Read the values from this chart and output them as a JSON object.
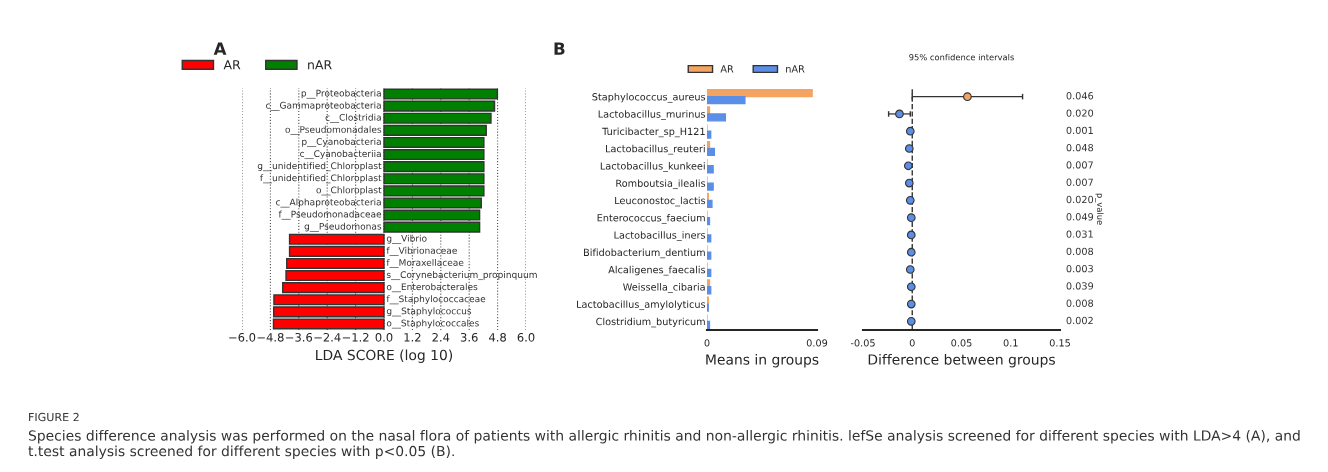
{
  "chart_data": [
    {
      "type": "bar",
      "orientation": "horizontal",
      "title": "A",
      "xlabel": "LDA SCORE (log 10)",
      "categories": [
        "p__Proteobacteria",
        "c__Gammaproteobacteria",
        "c__Clostridia",
        "o__Pseudomonadales",
        "p__Cyanobacteria",
        "c__Cyanobacteriia",
        "g__unidentified_Chloroplast",
        "f__unidentified_Chloroplast",
        "o__Chloroplast",
        "c__Alphaproteobacteria",
        "f__Pseudomonadaceae",
        "g__Pseudomonas",
        "g__Vibrio",
        "f__Vibrionaceae",
        "f__Moraxellaceae",
        "s__Corynebacterium_propinquum",
        "o__Enterobacterales",
        "f__Staphylococcaceae",
        "g__Staphylococcus",
        "o__Staphylococcales"
      ],
      "series": [
        {
          "name": "AR",
          "color": "#ff0000",
          "values": [
            null,
            null,
            null,
            null,
            null,
            null,
            null,
            null,
            null,
            null,
            null,
            null,
            -3.99,
            -3.99,
            -4.11,
            -4.14,
            -4.28,
            -4.65,
            -4.66,
            -4.67
          ]
        },
        {
          "name": "nAR",
          "color": "#008000",
          "values": [
            4.79,
            4.67,
            4.52,
            4.32,
            4.22,
            4.22,
            4.22,
            4.22,
            4.22,
            4.11,
            4.04,
            4.04,
            null,
            null,
            null,
            null,
            null,
            null,
            null,
            null
          ]
        }
      ],
      "xlim": [
        -6.0,
        6.0
      ],
      "xticks": [
        {
          "value": -6.0,
          "label": "−6.0"
        },
        {
          "value": -4.8,
          "label": "−4.8"
        },
        {
          "value": -3.6,
          "label": "−3.6"
        },
        {
          "value": -2.4,
          "label": "−2.4"
        },
        {
          "value": -1.2,
          "label": "−1.2"
        },
        {
          "value": 0.0,
          "label": "0.0"
        },
        {
          "value": 1.2,
          "label": "1.2"
        },
        {
          "value": 2.4,
          "label": "2.4"
        },
        {
          "value": 3.6,
          "label": "3.6"
        },
        {
          "value": 4.8,
          "label": "4.8"
        },
        {
          "value": 6.0,
          "label": "6.0"
        }
      ],
      "grid": "x",
      "legend": "top left",
      "stacked": true,
      "annotations": [
        "FIGURE 2",
        "Species difference analysis was performed on the nasal flora of patients with allergic rhinitis and non-allergic rhinitis. lefSe analysis screened for different species with LDA>4 (A), and t.test analysis screened for different species with p<0.05 (B)."
      ]
    },
    {
      "type": "bar",
      "orientation": "horizontal",
      "title": "B",
      "xlabel": "Means in groups",
      "categories": [
        "Staphylococcus_aureus",
        "Lactobacillus_murinus",
        "Turicibacter_sp_H121",
        "Lactobacillus_reuteri",
        "Lactobacillus_kunkeei",
        "Romboutsia_ilealis",
        "Leuconostoc_lactis",
        "Enterococcus_faecium",
        "Lactobacillus_iners",
        "Bifidobacterium_dentium",
        "Alcaligenes_faecalis",
        "Weissella_cibaria",
        "Lactobacillus_amylolyticus",
        "Clostridium_butyricum"
      ],
      "series": [
        {
          "name": "AR",
          "color": "#f4a460",
          "values": [
            0.086,
            0.002,
            0.0,
            0.002,
            0.0,
            0.0,
            0.001,
            0.0,
            0.0,
            0.0,
            0.0,
            0.002,
            0.001,
            0.0
          ]
        },
        {
          "name": "nAR",
          "color": "#5b8ee6",
          "values": [
            0.031,
            0.015,
            0.003,
            0.006,
            0.005,
            0.005,
            0.004,
            0.002,
            0.003,
            0.003,
            0.003,
            0.003,
            0.001,
            0.002
          ]
        }
      ],
      "xlim": [
        0,
        0.09
      ],
      "xticks": [
        0,
        0.09
      ],
      "legend": "top left"
    },
    {
      "type": "scatter",
      "orientation": "horizontal",
      "title": "95% confidence intervals",
      "xlabel": "Difference between groups",
      "y2label": "p_value",
      "categories": [
        null,
        null,
        null,
        null,
        null,
        null,
        null,
        null,
        null,
        null,
        null,
        null,
        null,
        null
      ],
      "values": [
        0.056,
        -0.013,
        -0.002,
        -0.003,
        -0.004,
        -0.003,
        -0.002,
        -0.001,
        -0.001,
        -0.001,
        -0.002,
        -0.001,
        -0.001,
        -0.001
      ],
      "errors": [
        [
          0.0,
          0.112
        ],
        [
          -0.024,
          -0.002
        ],
        null,
        null,
        null,
        null,
        null,
        null,
        null,
        null,
        null,
        null,
        null,
        null
      ],
      "colors": [
        "#f4a460",
        "#5b8ee6",
        "#5b8ee6",
        "#5b8ee6",
        "#5b8ee6",
        "#5b8ee6",
        "#5b8ee6",
        "#5b8ee6",
        "#5b8ee6",
        "#5b8ee6",
        "#5b8ee6",
        "#5b8ee6",
        "#5b8ee6",
        "#5b8ee6"
      ],
      "marker": "circle",
      "tick_labels": "x",
      "xlim": [
        -0.05,
        0.15
      ],
      "xticks": [
        -0.05,
        0,
        0.05,
        0.1,
        0.15
      ],
      "ref_lines": [
        {
          "axis": "x",
          "value": 0,
          "line_style": "dashed"
        }
      ],
      "annotations": [
        "0.046",
        "0.020",
        "0.001",
        "0.048",
        "0.007",
        "0.007",
        "0.020",
        "0.049",
        "0.031",
        "0.008",
        "0.003",
        "0.039",
        "0.008",
        "0.002"
      ]
    }
  ]
}
